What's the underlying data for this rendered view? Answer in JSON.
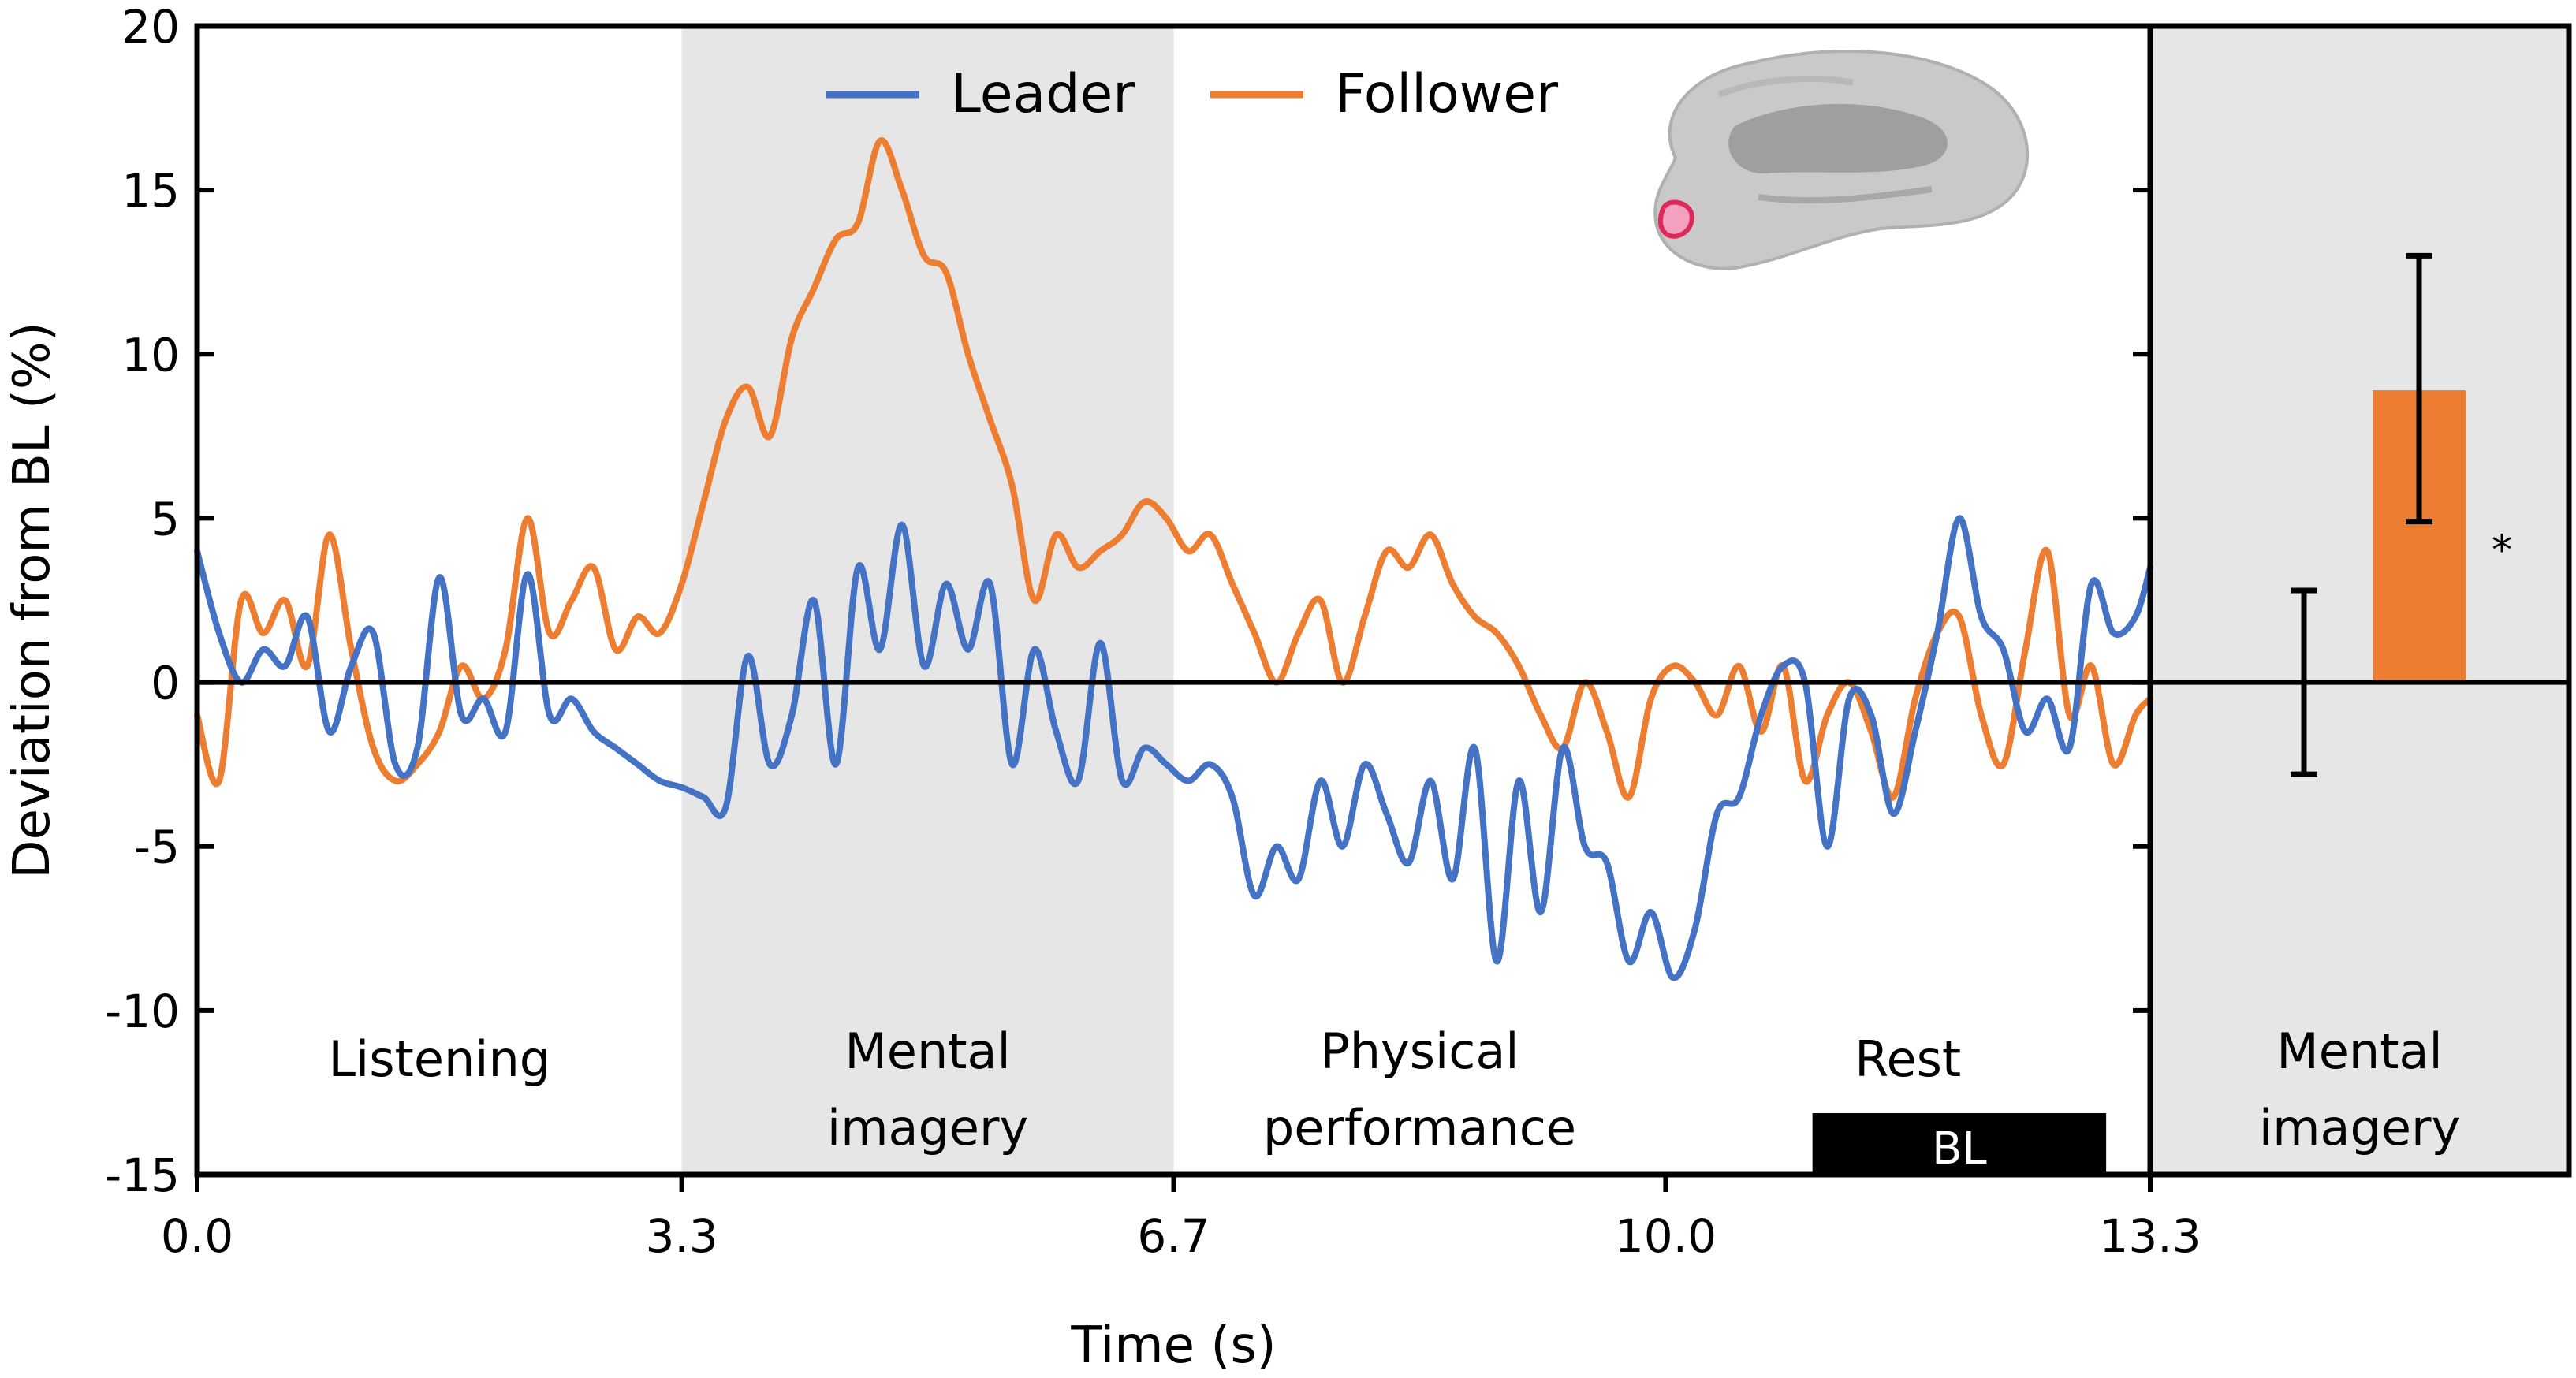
{
  "chart_data": {
    "type": "line",
    "xlabel": "Time (s)",
    "ylabel": "Deviation from BL (%)",
    "xlim": [
      0,
      13.3
    ],
    "ylim": [
      -15,
      20
    ],
    "x_ticks": [
      {
        "value": 0.0,
        "label": "0.0"
      },
      {
        "value": 3.3,
        "label": "3.3"
      },
      {
        "value": 6.65,
        "label": "6.7"
      },
      {
        "value": 10.0,
        "label": "10.0"
      },
      {
        "value": 13.3,
        "label": "13.3"
      }
    ],
    "y_ticks": [
      {
        "value": 20,
        "label": "20"
      },
      {
        "value": 15,
        "label": "15"
      },
      {
        "value": 10,
        "label": "10"
      },
      {
        "value": 5,
        "label": "5"
      },
      {
        "value": 0,
        "label": "0"
      },
      {
        "value": -5,
        "label": "-5"
      },
      {
        "value": -10,
        "label": "-10"
      },
      {
        "value": -15,
        "label": "-15"
      }
    ],
    "legend": {
      "position": "top-center",
      "entries": [
        "Leader",
        "Follower"
      ]
    },
    "phases": [
      {
        "label": "Listening",
        "start": 0.0,
        "end": 3.3,
        "shaded": false
      },
      {
        "label": "Mental imagery",
        "start": 3.3,
        "end": 6.65,
        "shaded": true
      },
      {
        "label": "Physical performance",
        "start": 6.65,
        "end": 10.0,
        "shaded": false
      },
      {
        "label": "Rest",
        "start": 10.0,
        "end": 13.3,
        "shaded": false
      }
    ],
    "baseline_window": {
      "label": "BL",
      "start": 11.0,
      "end": 13.0
    },
    "series": [
      {
        "name": "Leader",
        "color": "#4472c4",
        "x": [
          0.0,
          0.15,
          0.3,
          0.45,
          0.6,
          0.75,
          0.9,
          1.05,
          1.2,
          1.35,
          1.5,
          1.65,
          1.8,
          1.95,
          2.1,
          2.25,
          2.4,
          2.55,
          2.7,
          2.85,
          3.0,
          3.15,
          3.3,
          3.45,
          3.6,
          3.75,
          3.9,
          4.05,
          4.2,
          4.35,
          4.5,
          4.65,
          4.8,
          4.95,
          5.1,
          5.25,
          5.4,
          5.55,
          5.7,
          5.85,
          6.0,
          6.15,
          6.3,
          6.45,
          6.6,
          6.75,
          6.9,
          7.05,
          7.2,
          7.35,
          7.5,
          7.65,
          7.8,
          7.95,
          8.1,
          8.25,
          8.4,
          8.55,
          8.7,
          8.85,
          9.0,
          9.15,
          9.3,
          9.45,
          9.6,
          9.75,
          9.9,
          10.05,
          10.2,
          10.35,
          10.5,
          10.65,
          10.8,
          10.95,
          11.1,
          11.25,
          11.4,
          11.55,
          11.7,
          11.85,
          12.0,
          12.15,
          12.3,
          12.45,
          12.6,
          12.75,
          12.9,
          13.05,
          13.2,
          13.3
        ],
        "y": [
          4.0,
          1.5,
          0.0,
          1.0,
          0.5,
          2.0,
          -1.5,
          0.5,
          1.5,
          -2.5,
          -2.0,
          3.2,
          -1.0,
          -0.5,
          -1.5,
          3.3,
          -1.0,
          -0.5,
          -1.5,
          -2.0,
          -2.5,
          -3.0,
          -3.2,
          -3.5,
          -3.8,
          0.8,
          -2.5,
          -1.0,
          2.5,
          -2.5,
          3.5,
          1.0,
          4.8,
          0.5,
          3.0,
          1.0,
          3.0,
          -2.5,
          1.0,
          -1.5,
          -3.0,
          1.2,
          -3.0,
          -2.0,
          -2.5,
          -3.0,
          -2.5,
          -3.5,
          -6.5,
          -5.0,
          -6.0,
          -3.0,
          -5.0,
          -2.5,
          -4.0,
          -5.5,
          -3.0,
          -6.0,
          -2.0,
          -8.5,
          -3.0,
          -7.0,
          -2.0,
          -5.0,
          -5.5,
          -8.5,
          -7.0,
          -9.0,
          -7.5,
          -4.0,
          -3.5,
          -1.0,
          0.5,
          0.0,
          -5.0,
          -0.5,
          -1.0,
          -4.0,
          -1.5,
          1.5,
          5.0,
          2.0,
          1.0,
          -1.5,
          -0.5,
          -2.0,
          3.0,
          1.5,
          2.0,
          3.5
        ]
      },
      {
        "name": "Follower",
        "color": "#ed7d31",
        "x": [
          0.0,
          0.15,
          0.3,
          0.45,
          0.6,
          0.75,
          0.9,
          1.05,
          1.2,
          1.35,
          1.5,
          1.65,
          1.8,
          1.95,
          2.1,
          2.25,
          2.4,
          2.55,
          2.7,
          2.85,
          3.0,
          3.15,
          3.3,
          3.45,
          3.6,
          3.75,
          3.9,
          4.05,
          4.2,
          4.35,
          4.5,
          4.65,
          4.8,
          4.95,
          5.1,
          5.25,
          5.4,
          5.55,
          5.7,
          5.85,
          6.0,
          6.15,
          6.3,
          6.45,
          6.6,
          6.75,
          6.9,
          7.05,
          7.2,
          7.35,
          7.5,
          7.65,
          7.8,
          7.95,
          8.1,
          8.25,
          8.4,
          8.55,
          8.7,
          8.85,
          9.0,
          9.15,
          9.3,
          9.45,
          9.6,
          9.75,
          9.9,
          10.05,
          10.2,
          10.35,
          10.5,
          10.65,
          10.8,
          10.95,
          11.1,
          11.25,
          11.4,
          11.55,
          11.7,
          11.85,
          12.0,
          12.15,
          12.3,
          12.45,
          12.6,
          12.75,
          12.9,
          13.05,
          13.2,
          13.3
        ],
        "y": [
          -1.0,
          -3.0,
          2.5,
          1.5,
          2.5,
          0.5,
          4.5,
          1.0,
          -2.0,
          -3.0,
          -2.5,
          -1.5,
          0.5,
          -0.5,
          1.0,
          5.0,
          1.5,
          2.5,
          3.5,
          1.0,
          2.0,
          1.5,
          3.0,
          5.5,
          8.0,
          9.0,
          7.5,
          10.5,
          12.0,
          13.5,
          14.0,
          16.5,
          15.0,
          13.0,
          12.5,
          10.0,
          8.0,
          6.0,
          2.5,
          4.5,
          3.5,
          4.0,
          4.5,
          5.5,
          5.0,
          4.0,
          4.5,
          3.0,
          1.5,
          0.0,
          1.5,
          2.5,
          0.0,
          2.0,
          4.0,
          3.5,
          4.5,
          3.0,
          2.0,
          1.5,
          0.5,
          -1.0,
          -2.0,
          0.0,
          -1.5,
          -3.5,
          -0.5,
          0.5,
          0.0,
          -1.0,
          0.5,
          -1.5,
          0.5,
          -3.0,
          -1.0,
          0.0,
          -1.5,
          -3.5,
          -0.5,
          1.5,
          2.0,
          -1.0,
          -2.5,
          1.0,
          4.0,
          -1.0,
          0.5,
          -2.5,
          -1.0,
          -0.5
        ]
      }
    ],
    "inset": {
      "type": "bar",
      "category_label": "Mental imagery",
      "bars": [
        {
          "series": "Leader",
          "value": 0.0,
          "err_low": -2.8,
          "err_high": 2.8,
          "color": "#4472c4"
        },
        {
          "series": "Follower",
          "value": 8.9,
          "err_low": 4.9,
          "err_high": 13.0,
          "color": "#ed7d31"
        }
      ],
      "annotation": "*"
    }
  }
}
